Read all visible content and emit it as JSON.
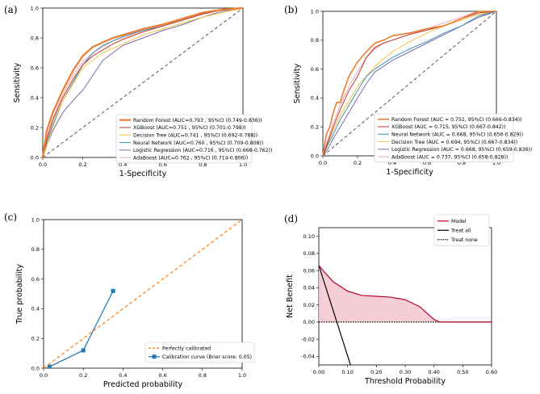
{
  "chart_data": [
    {
      "panel": "(a)",
      "type": "line",
      "xlabel": "1-Specificity",
      "ylabel": "Sensitivity",
      "xlim": [
        0,
        1
      ],
      "ylim": [
        0,
        1
      ],
      "xticks": [
        "0.0",
        "0.2",
        "0.4",
        "0.6",
        "0.8",
        "1.0"
      ],
      "yticks": [
        "0.0",
        "0.2",
        "0.4",
        "0.6",
        "0.8",
        "1.0"
      ],
      "legend_position": "bottom-right",
      "reference_line": {
        "x": [
          0,
          1
        ],
        "y": [
          0,
          1
        ],
        "color": "#555555",
        "style": "dashed"
      },
      "series": [
        {
          "name": "Random Forest (AUC=0.793 , 95%CI (0.749-0.836))",
          "color": "#ed7d31",
          "width": 2.2,
          "x": [
            0,
            0.02,
            0.05,
            0.1,
            0.15,
            0.2,
            0.25,
            0.3,
            0.35,
            0.4,
            0.5,
            0.6,
            0.7,
            0.8,
            0.9,
            1.0
          ],
          "y": [
            0,
            0.18,
            0.3,
            0.45,
            0.58,
            0.68,
            0.74,
            0.77,
            0.8,
            0.82,
            0.86,
            0.89,
            0.93,
            0.97,
            0.99,
            1.0
          ]
        },
        {
          "name": "XGBoost (AUC=0.751 , 95%CI (0.701-0.798))",
          "color": "#c0392b",
          "width": 1.0,
          "x": [
            0,
            0.02,
            0.05,
            0.1,
            0.15,
            0.2,
            0.25,
            0.3,
            0.35,
            0.4,
            0.5,
            0.6,
            0.7,
            0.8,
            0.9,
            1.0
          ],
          "y": [
            0,
            0.12,
            0.25,
            0.4,
            0.52,
            0.62,
            0.68,
            0.72,
            0.76,
            0.79,
            0.84,
            0.88,
            0.92,
            0.96,
            0.99,
            1.0
          ]
        },
        {
          "name": "Decision Tree (AUC=0.741 , 95%CI (0.692-0.788))",
          "color": "#f5c243",
          "width": 1.0,
          "x": [
            0,
            0.05,
            0.1,
            0.2,
            0.3,
            0.4,
            0.5,
            0.6,
            0.7,
            0.8,
            0.9,
            1.0
          ],
          "y": [
            0,
            0.2,
            0.38,
            0.6,
            0.7,
            0.76,
            0.82,
            0.86,
            0.9,
            0.94,
            0.97,
            1.0
          ]
        },
        {
          "name": "Neural Network (AUC=0.760 , 95%CI (0.709-0.808))",
          "color": "#3f8fb5",
          "width": 1.0,
          "x": [
            0,
            0.02,
            0.05,
            0.1,
            0.15,
            0.2,
            0.25,
            0.3,
            0.35,
            0.4,
            0.5,
            0.6,
            0.7,
            0.8,
            0.9,
            1.0
          ],
          "y": [
            0,
            0.1,
            0.22,
            0.38,
            0.5,
            0.62,
            0.7,
            0.75,
            0.78,
            0.81,
            0.85,
            0.88,
            0.92,
            0.96,
            0.99,
            1.0
          ]
        },
        {
          "name": "Logistic Regression (AUC=0.716 , 95%CI (0.668-0.762))",
          "color": "#7b68ae",
          "width": 1.0,
          "x": [
            0,
            0.02,
            0.05,
            0.1,
            0.15,
            0.2,
            0.25,
            0.3,
            0.35,
            0.4,
            0.5,
            0.6,
            0.7,
            0.8,
            0.9,
            1.0
          ],
          "y": [
            0,
            0.08,
            0.18,
            0.3,
            0.38,
            0.45,
            0.55,
            0.65,
            0.7,
            0.75,
            0.8,
            0.85,
            0.89,
            0.94,
            0.98,
            1.0
          ]
        },
        {
          "name": "AdaBoost (AUC=0.762 , 95%CI (0.714-0.806))",
          "color": "#f4a6b4",
          "width": 1.0,
          "x": [
            0,
            0.02,
            0.05,
            0.1,
            0.15,
            0.2,
            0.25,
            0.3,
            0.35,
            0.4,
            0.5,
            0.6,
            0.7,
            0.8,
            0.9,
            1.0
          ],
          "y": [
            0,
            0.14,
            0.26,
            0.42,
            0.55,
            0.64,
            0.7,
            0.74,
            0.78,
            0.8,
            0.85,
            0.88,
            0.92,
            0.96,
            0.99,
            1.0
          ]
        }
      ]
    },
    {
      "panel": "(b)",
      "type": "line",
      "xlabel": "1-Specificity",
      "ylabel": "Sensitivity",
      "xlim": [
        0,
        1
      ],
      "ylim": [
        0,
        1
      ],
      "xticks": [
        "0.0",
        "0.2",
        "0.4",
        "0.6",
        "0.8",
        "1.0"
      ],
      "yticks": [
        "0.0",
        "0.2",
        "0.4",
        "0.6",
        "0.8",
        "1.0"
      ],
      "legend_position": "bottom-right",
      "reference_line": {
        "x": [
          0,
          1
        ],
        "y": [
          0,
          1
        ],
        "color": "#555555",
        "style": "dashed"
      },
      "series": [
        {
          "name": "Random Forest (AUC = 0.751, 95%CI (0.666-0.834))",
          "color": "#ed7d31",
          "width": 1.6,
          "x": [
            0,
            0.02,
            0.04,
            0.06,
            0.08,
            0.1,
            0.12,
            0.15,
            0.2,
            0.25,
            0.3,
            0.35,
            0.4,
            0.5,
            0.6,
            0.7,
            0.8,
            0.85,
            0.9,
            1.0
          ],
          "y": [
            0,
            0.15,
            0.2,
            0.3,
            0.37,
            0.37,
            0.45,
            0.55,
            0.65,
            0.72,
            0.78,
            0.8,
            0.83,
            0.85,
            0.88,
            0.9,
            0.95,
            0.98,
            1.0,
            1.0
          ]
        },
        {
          "name": "XGBoost (AUC = 0.715, 95%CI (0.667-0.842))",
          "color": "#c0392b",
          "width": 1.0,
          "x": [
            0,
            0.03,
            0.06,
            0.1,
            0.15,
            0.2,
            0.25,
            0.3,
            0.35,
            0.4,
            0.5,
            0.6,
            0.7,
            0.8,
            0.9,
            1.0
          ],
          "y": [
            0,
            0.1,
            0.2,
            0.32,
            0.45,
            0.55,
            0.68,
            0.75,
            0.78,
            0.8,
            0.84,
            0.87,
            0.9,
            0.95,
            0.99,
            1.0
          ]
        },
        {
          "name": "Neural Network (AUC = 0.668, 95%CI (0.656-0.829))",
          "color": "#3f8fb5",
          "width": 1.0,
          "x": [
            0,
            0.03,
            0.06,
            0.1,
            0.15,
            0.2,
            0.25,
            0.3,
            0.4,
            0.5,
            0.6,
            0.7,
            0.8,
            0.9,
            1.0
          ],
          "y": [
            0,
            0.08,
            0.15,
            0.25,
            0.35,
            0.45,
            0.55,
            0.6,
            0.68,
            0.74,
            0.79,
            0.85,
            0.9,
            0.97,
            1.0
          ]
        },
        {
          "name": "Decision Tree (AUC = 0.694, 95%CI (0.667-0.834))",
          "color": "#f5c243",
          "width": 1.0,
          "x": [
            0,
            0.05,
            0.1,
            0.2,
            0.3,
            0.4,
            0.5,
            0.6,
            0.7,
            0.8,
            0.9,
            1.0
          ],
          "y": [
            0,
            0.15,
            0.28,
            0.48,
            0.62,
            0.72,
            0.79,
            0.85,
            0.9,
            0.94,
            0.98,
            1.0
          ]
        },
        {
          "name": "Logistic Regression (AUC = 0.668, 95%CI (0.659-0.836))",
          "color": "#7b68ae",
          "width": 1.0,
          "x": [
            0,
            0.03,
            0.06,
            0.1,
            0.15,
            0.2,
            0.25,
            0.3,
            0.4,
            0.5,
            0.6,
            0.7,
            0.8,
            0.9,
            1.0
          ],
          "y": [
            0,
            0.05,
            0.12,
            0.2,
            0.3,
            0.4,
            0.5,
            0.58,
            0.66,
            0.72,
            0.78,
            0.84,
            0.9,
            0.96,
            1.0
          ]
        },
        {
          "name": "AdaBoost (AUC = 0.737, 95%CI (0.658-0.828))",
          "color": "#f4a6b4",
          "width": 1.0,
          "x": [
            0,
            0.03,
            0.06,
            0.1,
            0.15,
            0.2,
            0.25,
            0.3,
            0.35,
            0.4,
            0.5,
            0.6,
            0.7,
            0.8,
            0.9,
            1.0
          ],
          "y": [
            0,
            0.12,
            0.22,
            0.35,
            0.48,
            0.58,
            0.68,
            0.74,
            0.78,
            0.8,
            0.84,
            0.88,
            0.92,
            0.96,
            0.99,
            1.0
          ]
        }
      ]
    },
    {
      "panel": "(c)",
      "type": "line",
      "xlabel": "Predicted probability",
      "ylabel": "True probability",
      "xlim": [
        0,
        1
      ],
      "ylim": [
        0,
        1
      ],
      "xticks": [
        "0.0",
        "0.2",
        "0.4",
        "0.6",
        "0.8",
        "1.0"
      ],
      "yticks": [
        "0.0",
        "0.2",
        "0.4",
        "0.6",
        "0.8",
        "1.0"
      ],
      "legend_position": "bottom-right",
      "series": [
        {
          "name": "Perfectly calibrated",
          "color": "#ff7f0e",
          "style": "dashed",
          "x": [
            0,
            1
          ],
          "y": [
            0,
            1
          ]
        },
        {
          "name": "Calibration curve (Brier score: 0.05)",
          "color": "#1f77b4",
          "marker": "square",
          "x": [
            0.03,
            0.2,
            0.35
          ],
          "y": [
            0.01,
            0.12,
            0.52
          ]
        }
      ]
    },
    {
      "panel": "(d)",
      "type": "line",
      "xlabel": "Threshold Probability",
      "ylabel": "Net Benefit",
      "xlim": [
        0,
        0.6
      ],
      "ylim": [
        -0.05,
        0.11
      ],
      "xticks": [
        "0.00",
        "0.10",
        "0.20",
        "0.30",
        "0.40",
        "0.50",
        "0.60"
      ],
      "yticks": [
        "-0.04",
        "-0.02",
        "0.00",
        "0.02",
        "0.04",
        "0.06",
        "0.08",
        "0.10"
      ],
      "legend_position": "top-right",
      "series": [
        {
          "name": "Model",
          "color": "#c0002a",
          "fill": "#f4c6d0",
          "x": [
            0,
            0.02,
            0.05,
            0.1,
            0.15,
            0.2,
            0.25,
            0.3,
            0.35,
            0.4,
            0.42,
            0.45,
            0.5,
            0.55,
            0.6
          ],
          "y": [
            0.066,
            0.058,
            0.047,
            0.036,
            0.031,
            0.03,
            0.029,
            0.026,
            0.018,
            0.003,
            0.0,
            0.0,
            0.0,
            0.0,
            0.0
          ]
        },
        {
          "name": "Treat all",
          "color": "#000000",
          "x": [
            0,
            0.11
          ],
          "y": [
            0.066,
            -0.05
          ]
        },
        {
          "name": "Treat none",
          "color": "#000000",
          "style": "dotted",
          "x": [
            0,
            0.6
          ],
          "y": [
            0,
            0
          ]
        }
      ]
    }
  ]
}
